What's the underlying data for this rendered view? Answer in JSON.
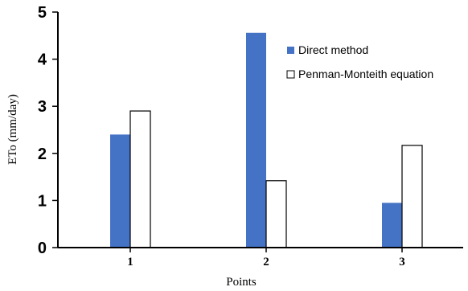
{
  "chart_data": {
    "type": "bar",
    "categories": [
      "1",
      "2",
      "3"
    ],
    "series": [
      {
        "name": "Direct method",
        "values": [
          2.4,
          4.56,
          0.95
        ],
        "color": "#4472C4"
      },
      {
        "name": "Penman-Monteith equation",
        "values": [
          2.9,
          1.42,
          2.17
        ],
        "color": "#ffffff"
      }
    ],
    "title": "",
    "xlabel": "Points",
    "ylabel": "ETo (mm/day)",
    "ylim": [
      0,
      5
    ],
    "yticks": [
      "0",
      "1",
      "2",
      "3",
      "4",
      "5"
    ],
    "grid": false,
    "legend_position": "top-right"
  }
}
